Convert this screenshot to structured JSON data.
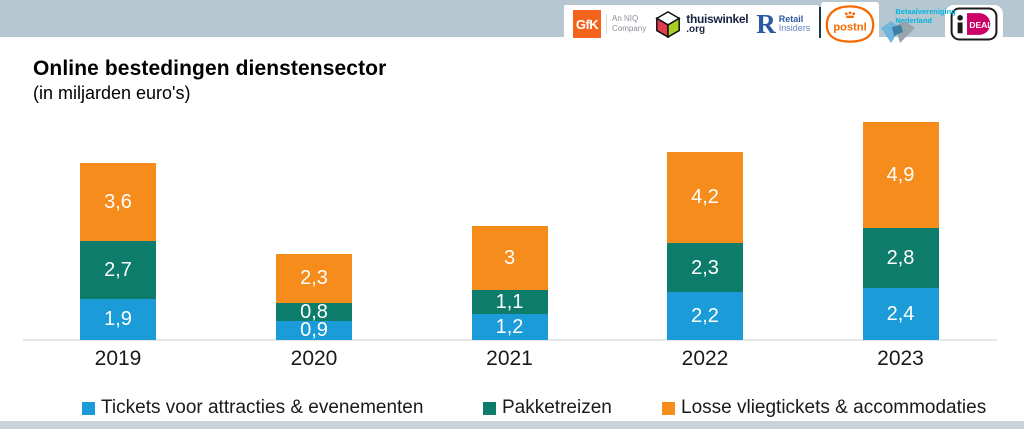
{
  "header": {
    "logos": {
      "gfk": {
        "text": "GfK",
        "tagline1": "An NIQ",
        "tagline2": "Company"
      },
      "thuiswinkel": {
        "text": "thuiswinkel",
        "suffix": ".org"
      },
      "retail_insiders": {
        "initial": "R",
        "line1": "Retail",
        "line2": "Insiders"
      },
      "postnl": {
        "text": "postnl"
      },
      "betaalvereniging": {
        "line1": "Betaalvereniging",
        "line2": "Nederland"
      },
      "ideal": {
        "deal": "DEAL"
      }
    }
  },
  "chart_data": {
    "type": "bar",
    "stacked": true,
    "title": "Online bestedingen dienstensector",
    "subtitle": "(in miljarden euro's)",
    "xlabel": "",
    "ylabel": "",
    "categories": [
      "2019",
      "2020",
      "2021",
      "2022",
      "2023"
    ],
    "series": [
      {
        "name": "Tickets voor attracties & evenementen",
        "color": "#1b9cd8",
        "values": [
          1.9,
          0.9,
          1.2,
          2.2,
          2.4
        ],
        "labels": [
          "1,9",
          "0,9",
          "1,2",
          "2,2",
          "2,4"
        ]
      },
      {
        "name": "Pakketreizen",
        "color": "#0e7c6b",
        "values": [
          2.7,
          0.8,
          1.1,
          2.3,
          2.8
        ],
        "labels": [
          "2,7",
          "0,8",
          "1,1",
          "2,3",
          "2,8"
        ]
      },
      {
        "name": "Losse vliegtickets & accommodaties",
        "color": "#f68c1c",
        "values": [
          3.6,
          2.3,
          3.0,
          4.2,
          4.9
        ],
        "labels": [
          "3,6",
          "2,3",
          "3",
          "4,2",
          "4,9"
        ]
      }
    ],
    "totals": [
      8.2,
      4.0,
      5.3,
      8.7,
      10.1
    ],
    "ylim": [
      0,
      10.5
    ],
    "grid": false,
    "axis_line": true,
    "value_labels": "inside-segments-white",
    "legend_position": "bottom"
  },
  "colors": {
    "top_band": "#b6c7d1",
    "bottom_band": "#c6d4da",
    "axis_line": "#e4e8e9"
  }
}
